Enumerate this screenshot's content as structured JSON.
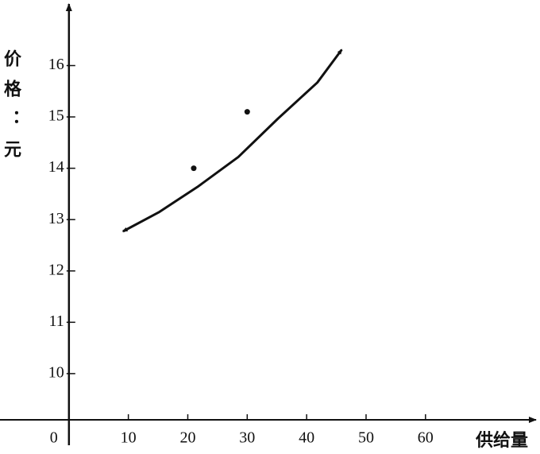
{
  "chart_data": {
    "type": "scatter",
    "x_label": "供给量",
    "y_label": "价格：元",
    "xlim": [
      -11.6,
      78.6
    ],
    "ylim": [
      9.1,
      17.2
    ],
    "xticks": [
      0,
      10,
      20,
      30,
      40,
      50,
      60
    ],
    "yticks": [
      10,
      11,
      12,
      13,
      14,
      15,
      16
    ],
    "series": [
      {
        "type": "line",
        "color": "#111111",
        "x": [
          9.1,
          15.1,
          21.8,
          28.5,
          35.2,
          41.8,
          45.9
        ],
        "values": [
          12.77,
          13.14,
          13.65,
          14.22,
          14.97,
          15.67,
          16.31
        ]
      },
      {
        "type": "scatter",
        "color": "#111111",
        "x": [
          21,
          30
        ],
        "values": [
          14,
          15.1
        ]
      }
    ]
  }
}
